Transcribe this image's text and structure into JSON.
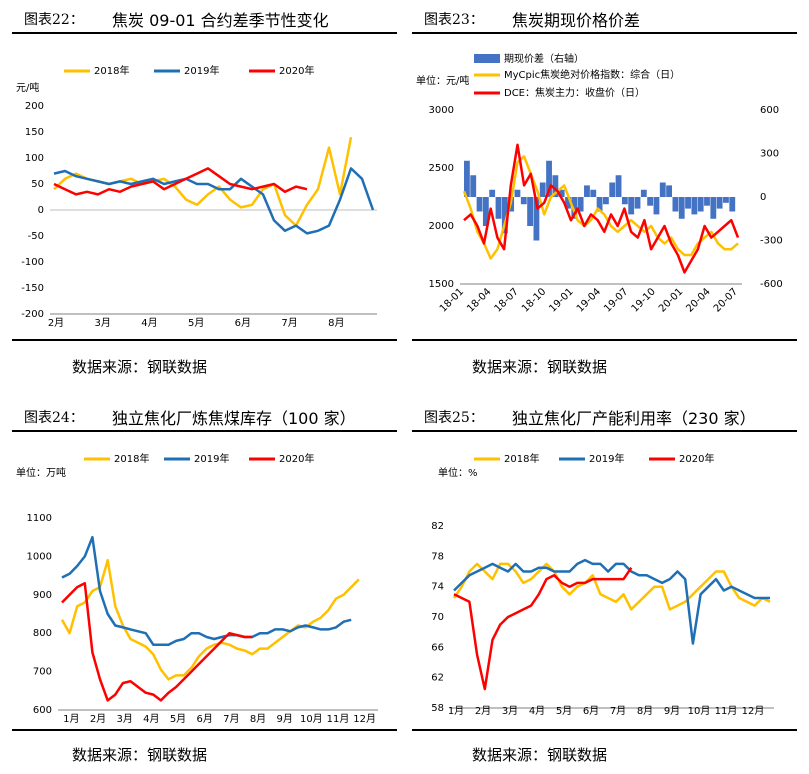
{
  "charts": [
    {
      "figure_label": "图表22：",
      "title": "焦炭 09-01 合约差季节性变化",
      "source": "数据来源：钢联数据",
      "chart_data": {
        "type": "line",
        "unit_label": "元/吨",
        "ylim": [
          -200,
          200
        ],
        "yticks": [
          "200",
          "150",
          "100",
          "50",
          "0",
          "-50",
          "-100",
          "-150",
          "-200"
        ],
        "xticks": [
          "2月",
          "3月",
          "4月",
          "5月",
          "6月",
          "7月",
          "8月"
        ],
        "legend_position": "top",
        "series": [
          {
            "name": "2018年",
            "color": "#FFC000",
            "values": [
              40,
              60,
              70,
              60,
              55,
              50,
              55,
              60,
              50,
              55,
              60,
              45,
              20,
              10,
              30,
              45,
              20,
              5,
              10,
              40,
              50,
              -10,
              -30,
              10,
              40,
              120,
              30,
              140
            ]
          },
          {
            "name": "2019年",
            "color": "#1F6FB5",
            "values": [
              70,
              75,
              65,
              60,
              55,
              50,
              55,
              50,
              55,
              60,
              50,
              55,
              60,
              50,
              50,
              40,
              40,
              60,
              45,
              30,
              -20,
              -40,
              -30,
              -45,
              -40,
              -30,
              20,
              80,
              60,
              0
            ]
          },
          {
            "name": "2020年",
            "color": "#FF0000",
            "values": [
              50,
              40,
              30,
              35,
              30,
              40,
              35,
              45,
              50,
              55,
              40,
              50,
              60,
              70,
              80,
              65,
              50,
              45,
              40,
              45,
              50,
              35,
              45,
              40
            ]
          }
        ]
      }
    },
    {
      "figure_label": "图表23：",
      "title": "焦炭期现价格价差",
      "source": "数据来源：钢联数据",
      "chart_data": {
        "type": "line",
        "unit_label": "单位：元/吨",
        "ylim": [
          1500,
          3000
        ],
        "yticks_left": [
          "3000",
          "2500",
          "2000",
          "1500"
        ],
        "ylim_right": [
          -600,
          600
        ],
        "yticks_right": [
          "600",
          "300",
          "0",
          "-300",
          "-600"
        ],
        "xticks": [
          "18-01",
          "18-04",
          "18-07",
          "18-10",
          "19-01",
          "19-04",
          "19-07",
          "19-10",
          "20-01",
          "20-04",
          "20-07"
        ],
        "legend_position": "top",
        "series": [
          {
            "name": "期现价差（右轴）",
            "color": "#4472C4",
            "axis": "right",
            "values": [
              250,
              150,
              -100,
              -200,
              50,
              -150,
              -250,
              -100,
              50,
              -50,
              -200,
              -300,
              100,
              250,
              150,
              50,
              -80,
              -150,
              -100,
              80,
              50,
              -100,
              -50,
              100,
              150,
              -50,
              -120,
              -80,
              50,
              -60,
              -120,
              100,
              80,
              -100,
              -150,
              -80,
              -120,
              -100,
              -60,
              -150,
              -80,
              -40,
              -100,
              0
            ]
          },
          {
            "name": "MyCpic焦炭绝对价格指数：综合（日）",
            "color": "#FFC000",
            "axis": "left",
            "values": [
              2300,
              2150,
              1950,
              1850,
              1720,
              1800,
              2000,
              2200,
              2550,
              2600,
              2450,
              2300,
              2100,
              2250,
              2300,
              2350,
              2200,
              2050,
              2000,
              2050,
              2150,
              2100,
              2000,
              1950,
              2000,
              2050,
              2000,
              1950,
              2000,
              1900,
              1850,
              1900,
              1800,
              1750,
              1750,
              1850,
              1900,
              1950,
              1850,
              1800,
              1800,
              1850
            ]
          },
          {
            "name": "DCE：焦炭主力：收盘价（日）",
            "color": "#FF0000",
            "axis": "left",
            "values": [
              2050,
              2100,
              2000,
              1850,
              2150,
              1900,
              1800,
              2350,
              2700,
              2350,
              2450,
              2150,
              2200,
              2350,
              2300,
              2200,
              2050,
              2150,
              2000,
              2100,
              2050,
              1950,
              2100,
              2000,
              2150,
              1950,
              1900,
              2050,
              1800,
              1900,
              2000,
              1850,
              1750,
              1600,
              1700,
              1800,
              2000,
              1900,
              1950,
              2000,
              2050,
              1900
            ]
          }
        ]
      }
    },
    {
      "figure_label": "图表24：",
      "title": "独立焦化厂炼焦煤库存（100 家）",
      "source": "数据来源：钢联数据",
      "chart_data": {
        "type": "line",
        "unit_label": "单位：万吨",
        "ylim": [
          600,
          1100
        ],
        "yticks": [
          "1100",
          "1000",
          "900",
          "800",
          "700",
          "600"
        ],
        "xticks": [
          "1月",
          "2月",
          "3月",
          "4月",
          "5月",
          "6月",
          "7月",
          "8月",
          "9月",
          "10月",
          "11月",
          "12月"
        ],
        "legend_position": "top",
        "series": [
          {
            "name": "2018年",
            "color": "#FFC000",
            "values": [
              835,
              800,
              870,
              880,
              910,
              920,
              990,
              870,
              820,
              785,
              775,
              765,
              745,
              705,
              680,
              690,
              690,
              710,
              740,
              760,
              770,
              775,
              770,
              760,
              755,
              745,
              760,
              760,
              775,
              790,
              805,
              820,
              815,
              830,
              840,
              860,
              890,
              900,
              920,
              940
            ]
          },
          {
            "name": "2019年",
            "color": "#1F6FB5",
            "values": [
              945,
              955,
              975,
              1000,
              1050,
              910,
              850,
              820,
              815,
              810,
              805,
              800,
              770,
              770,
              770,
              780,
              785,
              800,
              800,
              790,
              785,
              790,
              795,
              795,
              790,
              790,
              800,
              800,
              810,
              810,
              805,
              815,
              820,
              815,
              810,
              810,
              815,
              830,
              835
            ]
          },
          {
            "name": "2020年",
            "color": "#FF0000",
            "values": [
              880,
              900,
              920,
              930,
              750,
              680,
              625,
              640,
              670,
              675,
              660,
              645,
              640,
              625,
              645,
              660,
              680,
              700,
              720,
              740,
              760,
              780,
              800,
              795,
              790,
              790
            ]
          }
        ]
      }
    },
    {
      "figure_label": "图表25：",
      "title": "独立焦化厂产能利用率（230 家）",
      "source": "数据来源：钢联数据",
      "chart_data": {
        "type": "line",
        "unit_label": "单位：%",
        "ylim": [
          58,
          82
        ],
        "yticks": [
          "82",
          "78",
          "74",
          "70",
          "66",
          "62",
          "58"
        ],
        "xticks": [
          "1月",
          "2月",
          "3月",
          "4月",
          "5月",
          "6月",
          "7月",
          "8月",
          "9月",
          "10月",
          "11月",
          "12月"
        ],
        "legend_position": "top",
        "series": [
          {
            "name": "2018年",
            "color": "#FFC000",
            "values": [
              72.5,
              74,
              76,
              77,
              76,
              75,
              77,
              77,
              76,
              74.5,
              75,
              76,
              77,
              76,
              74,
              73,
              74,
              74.5,
              75.5,
              73,
              72.5,
              72,
              73,
              71,
              72,
              73,
              74,
              74,
              71,
              71.5,
              72,
              73,
              74,
              75,
              76,
              76,
              74,
              72.5,
              72,
              71.5,
              72.5,
              72
            ]
          },
          {
            "name": "2019年",
            "color": "#1F6FB5",
            "values": [
              73.5,
              74.5,
              75.5,
              76,
              76.5,
              77,
              76.5,
              76,
              77,
              76,
              76,
              76.5,
              76.5,
              76,
              76,
              76,
              77,
              77.5,
              77,
              77,
              76,
              77,
              77,
              76,
              75.5,
              75.5,
              75,
              74.5,
              75,
              76,
              75,
              66.5,
              73,
              74,
              75,
              73.5,
              74,
              73.5,
              73,
              72.5,
              72.5,
              72.5
            ]
          },
          {
            "name": "2020年",
            "color": "#FF0000",
            "values": [
              73,
              72.5,
              72,
              65,
              60.5,
              67,
              69,
              70,
              70.5,
              71,
              71.5,
              73,
              75,
              75.5,
              74.5,
              74,
              74.5,
              74.5,
              75,
              75,
              75,
              75,
              75,
              76.5
            ]
          }
        ]
      }
    }
  ]
}
